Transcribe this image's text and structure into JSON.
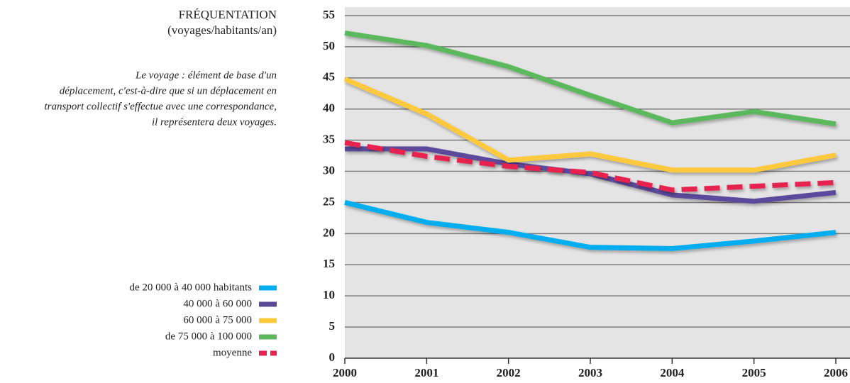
{
  "chart_data": {
    "type": "line",
    "title": "FRÉQUENTATION",
    "subtitle": "(voyages/habitants/an)",
    "annotation": [
      "Le voyage : élément de base d'un",
      "déplacement, c'est-à-dire que si un déplacement en",
      "transport collectif s'effectue avec une correspondance,",
      "il représentera deux voyages."
    ],
    "x": [
      2000,
      2001,
      2002,
      2003,
      2004,
      2005,
      2006
    ],
    "xlim": [
      2000,
      2006
    ],
    "xticks": [
      2000,
      2001,
      2002,
      2003,
      2004,
      2005,
      2006
    ],
    "ylim": [
      0,
      55
    ],
    "yticks": [
      0,
      5,
      10,
      15,
      20,
      25,
      30,
      35,
      40,
      45,
      50,
      55
    ],
    "grid": true,
    "legend": "left",
    "series": [
      {
        "name": "de 20 000 à 40 000 habitants",
        "color": "#00aeef",
        "values": [
          25,
          21.8,
          20.2,
          17.8,
          17.6,
          18.8,
          20.2
        ]
      },
      {
        "name": "40 000 à 60 000",
        "color": "#5b4a9b",
        "values": [
          33.6,
          33.6,
          31.2,
          29.6,
          26.2,
          25.2,
          26.6
        ]
      },
      {
        "name": "60 000 à 75 000",
        "color": "#ffc93c",
        "values": [
          44.8,
          39.2,
          31.8,
          32.8,
          30.2,
          30.2,
          32.6
        ]
      },
      {
        "name": "de 75 000 à 100 000",
        "color": "#5cb85c",
        "values": [
          52.2,
          50.2,
          46.8,
          42.2,
          37.8,
          39.6,
          37.6
        ]
      },
      {
        "name": "moyenne",
        "color": "#e8224f",
        "dashed": true,
        "values": [
          34.6,
          32.4,
          30.8,
          29.8,
          27,
          27.6,
          28.2
        ]
      }
    ]
  }
}
